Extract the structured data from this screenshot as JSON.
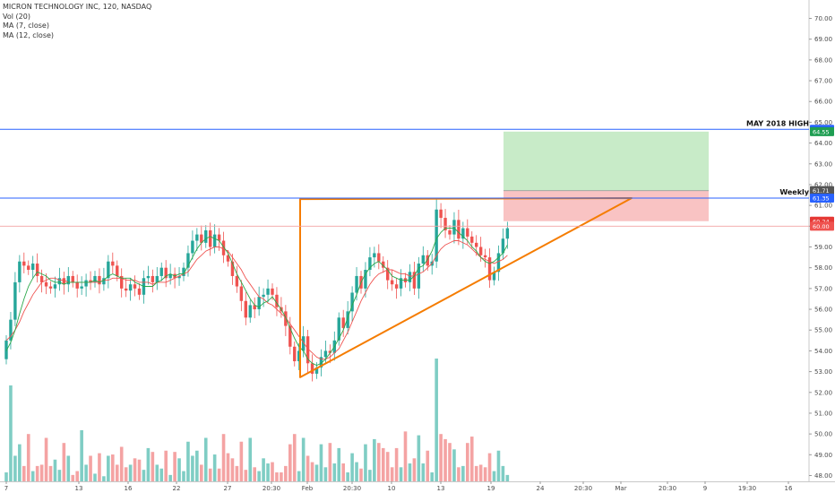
{
  "legend": {
    "title": "MICRON TECHNOLOGY INC, 120, NASDAQ",
    "vol": "Vol (20)",
    "ma7": "MA (7, close)",
    "ma12": "MA (12, close)"
  },
  "chart_data": {
    "type": "candlestick",
    "title": "MICRON TECHNOLOGY INC, 120, NASDAQ",
    "ylim": [
      47.9,
      70.5
    ],
    "y_ticks": [
      "70.00",
      "69.00",
      "68.00",
      "67.00",
      "66.00",
      "65.00",
      "64.00",
      "63.00",
      "62.00",
      "61.00",
      "60.00",
      "59.00",
      "58.00",
      "57.00",
      "56.00",
      "55.00",
      "54.00",
      "53.00",
      "52.00",
      "51.00",
      "50.00",
      "49.00",
      "48.00"
    ],
    "x_ticks": [
      "7",
      "13",
      "16",
      "22",
      "27",
      "20:30",
      "Feb",
      "20:30",
      "10",
      "13",
      "19",
      "24",
      "20:30",
      "Mar",
      "20:30",
      "9",
      "19:30",
      "16"
    ],
    "closes": [
      54.5,
      55.5,
      57.3,
      58.3,
      58.1,
      57.9,
      58.2,
      57.6,
      57.3,
      57.1,
      57.0,
      57.2,
      57.5,
      57.2,
      57.6,
      57.3,
      57.0,
      57.1,
      57.4,
      57.3,
      57.6,
      57.2,
      57.5,
      58.3,
      58.1,
      57.6,
      57.0,
      56.9,
      57.2,
      57.0,
      56.7,
      57.5,
      57.6,
      57.3,
      57.6,
      58.0,
      57.5,
      57.7,
      57.5,
      57.6,
      58.0,
      58.7,
      59.3,
      59.6,
      59.2,
      59.8,
      59.0,
      59.6,
      59.3,
      58.6,
      58.3,
      57.6,
      57.1,
      56.4,
      55.6,
      56.2,
      56.0,
      56.6,
      56.7,
      57.0,
      56.7,
      56.1,
      55.9,
      55.2,
      54.2,
      53.5,
      54.0,
      54.7,
      53.4,
      52.9,
      53.2,
      53.7,
      54.0,
      53.9,
      54.5,
      55.6,
      55.1,
      55.9,
      56.8,
      57.6,
      57.0,
      57.9,
      58.5,
      58.7,
      58.3,
      58.0,
      57.4,
      57.2,
      57.0,
      57.5,
      57.3,
      57.8,
      57.0,
      58.2,
      58.6,
      58.1,
      58.3,
      60.8,
      60.4,
      59.8,
      59.6,
      60.3,
      59.4,
      59.9,
      59.5,
      59.2,
      59.0,
      58.6,
      58.5,
      57.4,
      57.8,
      58.7,
      59.4,
      59.9
    ],
    "ma7": [
      54.0,
      54.4,
      55.0,
      55.8,
      56.5,
      57.1,
      57.5,
      57.8,
      57.7,
      57.6,
      57.4,
      57.3,
      57.3,
      57.2,
      57.3,
      57.3,
      57.3,
      57.3,
      57.3,
      57.3,
      57.4,
      57.3,
      57.4,
      57.6,
      57.7,
      57.6,
      57.5,
      57.5,
      57.5,
      57.3,
      57.2,
      57.1,
      57.1,
      57.1,
      57.3,
      57.4,
      57.6,
      57.7,
      57.6,
      57.7,
      57.7,
      58.1,
      58.5,
      58.9,
      59.2,
      59.4,
      59.5,
      59.4,
      59.3,
      59.0,
      58.7,
      58.2,
      57.7,
      57.3,
      56.9,
      56.5,
      56.2,
      56.1,
      56.3,
      56.4,
      56.6,
      56.3,
      56.0,
      55.6,
      55.1,
      54.6,
      54.2,
      54.0,
      53.6,
      53.4,
      53.3,
      53.4,
      53.6,
      53.9,
      54.2,
      54.6,
      55.0,
      55.6,
      56.2,
      56.7,
      57.3,
      57.7,
      58.0,
      58.2,
      58.3,
      58.1,
      57.9,
      57.6,
      57.5,
      57.4,
      57.4,
      57.4,
      57.6,
      58.0,
      58.1,
      58.4,
      58.8,
      59.4,
      59.7,
      59.9,
      59.9,
      59.9,
      59.7,
      59.5,
      59.3,
      59.0,
      58.8,
      58.5,
      58.3,
      58.2,
      58.3,
      58.5,
      58.7,
      59.1
    ],
    "ma12": [
      54.5,
      54.7,
      55.0,
      55.4,
      55.9,
      56.3,
      56.7,
      57.0,
      57.3,
      57.4,
      57.5,
      57.5,
      57.4,
      57.4,
      57.3,
      57.3,
      57.3,
      57.3,
      57.3,
      57.3,
      57.3,
      57.3,
      57.4,
      57.4,
      57.5,
      57.5,
      57.5,
      57.4,
      57.4,
      57.4,
      57.3,
      57.3,
      57.3,
      57.2,
      57.3,
      57.3,
      57.3,
      57.4,
      57.5,
      57.6,
      57.7,
      57.8,
      58.1,
      58.4,
      58.6,
      58.8,
      58.9,
      59.0,
      59.0,
      58.9,
      58.8,
      58.5,
      58.2,
      57.9,
      57.5,
      57.2,
      56.9,
      56.6,
      56.5,
      56.3,
      56.2,
      56.0,
      55.8,
      55.6,
      55.3,
      55.0,
      54.7,
      54.4,
      54.1,
      53.9,
      53.7,
      53.6,
      53.6,
      53.7,
      53.9,
      54.1,
      54.5,
      54.9,
      55.4,
      55.9,
      56.4,
      56.8,
      57.2,
      57.5,
      57.7,
      57.8,
      57.9,
      57.9,
      57.8,
      57.7,
      57.7,
      57.6,
      57.6,
      57.7,
      57.8,
      58.0,
      58.2,
      58.6,
      58.9,
      59.1,
      59.2,
      59.3,
      59.3,
      59.2,
      59.1,
      58.9,
      58.7,
      58.5,
      58.4,
      58.3,
      58.2,
      58.3,
      58.4,
      58.6
    ],
    "volumes": [
      7,
      75,
      20,
      29,
      12,
      37,
      8,
      12,
      13,
      34,
      12,
      17,
      9,
      30,
      20,
      5,
      8,
      40,
      13,
      20,
      6,
      22,
      4,
      20,
      21,
      13,
      27,
      11,
      13,
      18,
      17,
      9,
      26,
      23,
      13,
      10,
      24,
      5,
      23,
      18,
      8,
      31,
      20,
      24,
      13,
      34,
      10,
      21,
      10,
      37,
      22,
      18,
      12,
      31,
      9,
      34,
      11,
      8,
      18,
      14,
      15,
      7,
      7,
      12,
      29,
      37,
      8,
      34,
      20,
      15,
      13,
      29,
      11,
      30,
      14,
      26,
      14,
      7,
      22,
      15,
      10,
      29,
      9,
      33,
      30,
      26,
      23,
      11,
      26,
      11,
      39,
      14,
      18,
      36,
      14,
      24,
      7,
      96,
      37,
      33,
      30,
      25,
      11,
      12,
      30,
      35,
      12,
      13,
      11,
      22,
      8,
      24,
      12,
      5
    ]
  },
  "levels": {
    "may_high_label": "MAY 2018 HIGH",
    "may_high_value": "64.66",
    "weekly_label": "Weekly",
    "weekly_value": "61.35",
    "target_value": "64.55",
    "stop_value": "61.71",
    "entry_value": "60.24",
    "price_value": "60.00"
  },
  "colors": {
    "up": "#26a69a",
    "down": "#ef5350",
    "ma7": "#2aa84a",
    "ma12": "#ef5350",
    "trend": "#f57c00",
    "level": "#2962ff",
    "target_zone": "#c8ebc8",
    "stop_zone": "#f9c3c3"
  }
}
